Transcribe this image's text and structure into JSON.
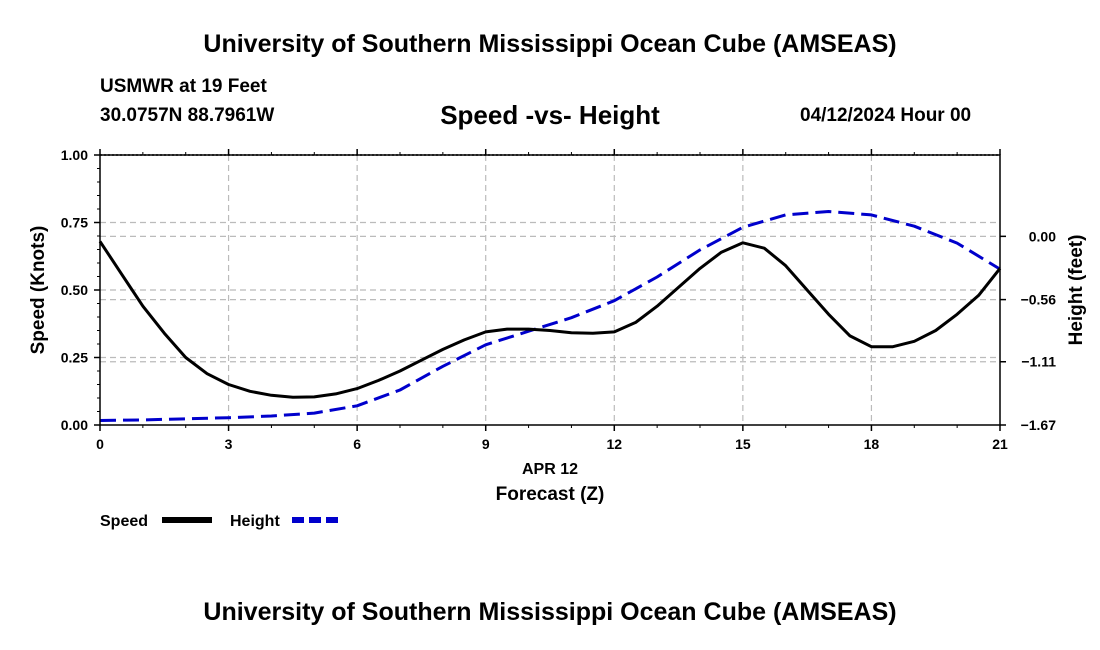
{
  "header": {
    "title_top": "University of Southern Mississippi Ocean Cube (AMSEAS)",
    "title_bottom": "University of Southern Mississippi Ocean Cube (AMSEAS)",
    "station": "USMWR at 19 Feet",
    "coordinates": "30.0757N  88.7961W",
    "datetime": "04/12/2024 Hour 00"
  },
  "colors": {
    "speed": "#000000",
    "height": "#0000cc",
    "grid": "#bbbbbb"
  },
  "chart_data": {
    "type": "line",
    "title": "Speed -vs- Height",
    "xlabel": "Forecast (Z)",
    "xlabel_date": "APR 12",
    "ylabel": "Speed (Knots)",
    "y2label": "Height (feet)",
    "xlim": [
      0,
      21
    ],
    "ylim": [
      0,
      1
    ],
    "y2lim": [
      -1.67,
      0.72
    ],
    "x_ticks": [
      0,
      3,
      6,
      9,
      12,
      15,
      18,
      21
    ],
    "x_tick_labels": [
      "0",
      "3",
      "6",
      "9",
      "12",
      "15",
      "18",
      "21"
    ],
    "y_ticks": [
      0,
      0.25,
      0.5,
      0.75,
      1.0
    ],
    "y_tick_labels": [
      "0.00",
      "0.25",
      "0.50",
      "0.75",
      "1.00"
    ],
    "y2_ticks": [
      0.0,
      -0.56,
      -1.11,
      -1.67
    ],
    "y2_tick_labels": [
      "0.00",
      "−0.56",
      "−1.11",
      "−1.67"
    ],
    "grid": true,
    "legend_position": "bottom-left",
    "series": [
      {
        "name": "Speed",
        "axis": "left",
        "style": "solid",
        "x": [
          0,
          0.5,
          1,
          1.5,
          2,
          2.5,
          3,
          3.5,
          4,
          4.5,
          5,
          5.5,
          6,
          6.5,
          7,
          7.5,
          8,
          8.5,
          9,
          9.5,
          10,
          10.5,
          11,
          11.5,
          12,
          12.5,
          13,
          13.5,
          14,
          14.5,
          15,
          15.5,
          16,
          16.5,
          17,
          17.5,
          18,
          18.5,
          19,
          19.5,
          20,
          20.5,
          21
        ],
        "values": [
          0.68,
          0.56,
          0.44,
          0.34,
          0.25,
          0.19,
          0.15,
          0.125,
          0.11,
          0.103,
          0.104,
          0.115,
          0.135,
          0.165,
          0.2,
          0.24,
          0.28,
          0.315,
          0.345,
          0.355,
          0.355,
          0.35,
          0.342,
          0.34,
          0.345,
          0.38,
          0.44,
          0.51,
          0.58,
          0.64,
          0.675,
          0.655,
          0.59,
          0.5,
          0.41,
          0.33,
          0.29,
          0.29,
          0.31,
          0.35,
          0.41,
          0.48,
          0.58
        ]
      },
      {
        "name": "Height",
        "axis": "right",
        "style": "dashed",
        "x": [
          0,
          1,
          2,
          3,
          4,
          5,
          6,
          7,
          8,
          9,
          10,
          11,
          12,
          13,
          14,
          15,
          16,
          17,
          18,
          19,
          20,
          21
        ],
        "values": [
          -1.63,
          -1.625,
          -1.615,
          -1.605,
          -1.59,
          -1.565,
          -1.5,
          -1.36,
          -1.15,
          -0.96,
          -0.84,
          -0.72,
          -0.57,
          -0.36,
          -0.12,
          0.08,
          0.19,
          0.22,
          0.19,
          0.09,
          -0.06,
          -0.29
        ]
      }
    ]
  }
}
